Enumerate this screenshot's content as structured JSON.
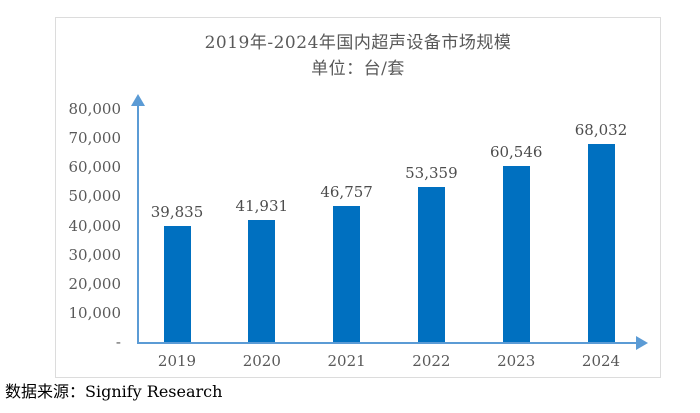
{
  "chart_data": {
    "type": "bar",
    "title": "2019年-2024年国内超声设备市场规模",
    "subtitle": "单位：台/套",
    "categories": [
      "2019",
      "2020",
      "2021",
      "2022",
      "2023",
      "2024"
    ],
    "values": [
      39835,
      41931,
      46757,
      53359,
      60546,
      68032
    ],
    "value_labels": [
      "39,835",
      "41,931",
      "46,757",
      "53,359",
      "60,546",
      "68,032"
    ],
    "xlabel": "",
    "ylabel": "",
    "ylim": [
      0,
      80000
    ],
    "ytick_step": 10000,
    "ytick_labels": [
      "-",
      "10,000",
      "20,000",
      "30,000",
      "40,000",
      "50,000",
      "60,000",
      "70,000",
      "80,000"
    ],
    "grid": false,
    "legend": "none",
    "bar_color": "#0070c0",
    "axis_color": "#5b9bd5",
    "text_color": "#595959",
    "value_label_color": "#4d4d4d"
  },
  "source": {
    "text": "数据来源：Signify Research"
  }
}
